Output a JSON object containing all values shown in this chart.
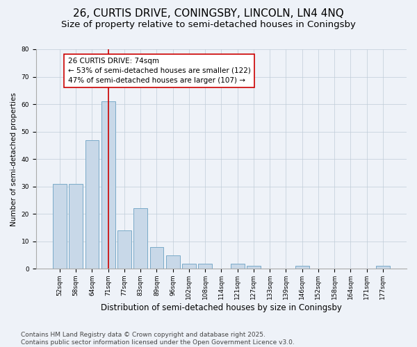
{
  "title1": "26, CURTIS DRIVE, CONINGSBY, LINCOLN, LN4 4NQ",
  "title2": "Size of property relative to semi-detached houses in Coningsby",
  "xlabel": "Distribution of semi-detached houses by size in Coningsby",
  "ylabel": "Number of semi-detached properties",
  "categories": [
    "52sqm",
    "58sqm",
    "64sqm",
    "71sqm",
    "77sqm",
    "83sqm",
    "89sqm",
    "96sqm",
    "102sqm",
    "108sqm",
    "114sqm",
    "121sqm",
    "127sqm",
    "133sqm",
    "139sqm",
    "146sqm",
    "152sqm",
    "158sqm",
    "164sqm",
    "171sqm",
    "177sqm"
  ],
  "values": [
    31,
    31,
    47,
    61,
    14,
    22,
    8,
    5,
    2,
    2,
    0,
    2,
    1,
    0,
    0,
    1,
    0,
    0,
    0,
    0,
    1
  ],
  "bar_color": "#c8d8e8",
  "bar_edge_color": "#7aaac8",
  "vline_x": 3,
  "vline_color": "#cc0000",
  "annotation_text": "26 CURTIS DRIVE: 74sqm\n← 53% of semi-detached houses are smaller (122)\n47% of semi-detached houses are larger (107) →",
  "annotation_box_color": "#ffffff",
  "annotation_box_edge_color": "#cc0000",
  "ylim": [
    0,
    80
  ],
  "yticks": [
    0,
    10,
    20,
    30,
    40,
    50,
    60,
    70,
    80
  ],
  "footer": "Contains HM Land Registry data © Crown copyright and database right 2025.\nContains public sector information licensed under the Open Government Licence v3.0.",
  "background_color": "#eef2f8",
  "plot_background_color": "#eef2f8",
  "grid_color": "#c0ccd8",
  "title1_fontsize": 11,
  "title2_fontsize": 9.5,
  "annotation_fontsize": 7.5,
  "footer_fontsize": 6.5,
  "ylabel_fontsize": 7.5,
  "xlabel_fontsize": 8.5,
  "tick_fontsize": 6.5
}
